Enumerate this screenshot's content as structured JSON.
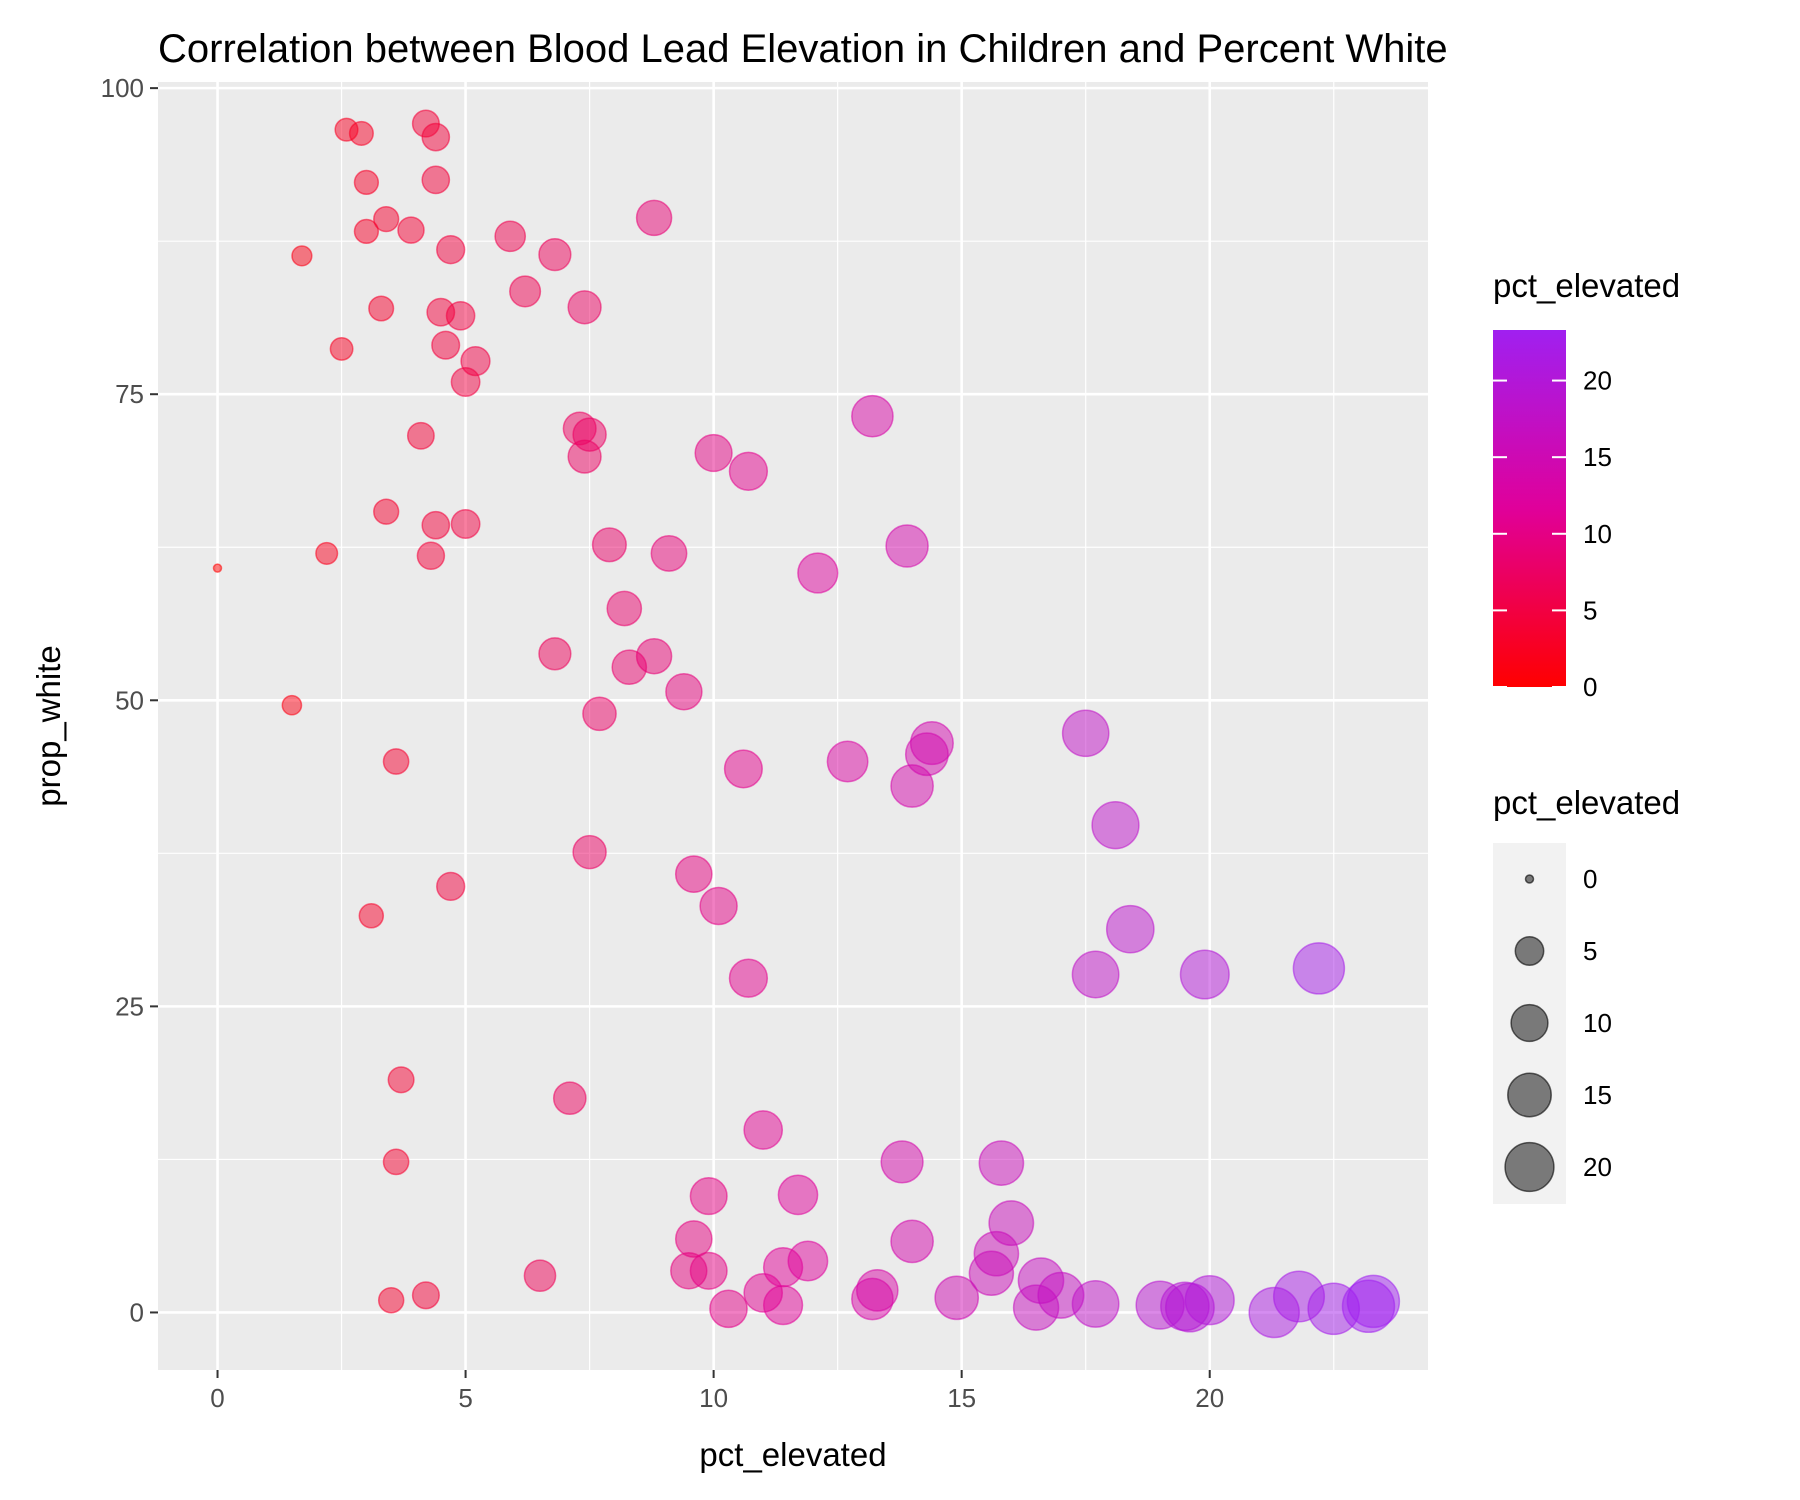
{
  "chart_data": {
    "type": "scatter",
    "title": "Correlation between Blood Lead Elevation in Children and Percent White",
    "xlabel": "pct_elevated",
    "ylabel": "prop_white",
    "xlim": [
      -1.2,
      24.4
    ],
    "ylim": [
      -4.7,
      100.5
    ],
    "x_ticks": [
      0,
      5,
      10,
      15,
      20
    ],
    "y_ticks": [
      0,
      25,
      50,
      75,
      100
    ],
    "x_tick_labels": [
      "0",
      "5",
      "10",
      "15",
      "20"
    ],
    "y_tick_labels": [
      "0",
      "25",
      "50",
      "75",
      "100"
    ],
    "grid": true,
    "panel_background": "#ebebeb",
    "legend_position": "right",
    "color_scale": {
      "title": "pct_elevated",
      "low": "#ff0000",
      "mid": "#e0009a",
      "high": "#a020f0",
      "domain": [
        0,
        23.3
      ],
      "breaks": [
        0,
        5,
        10,
        15,
        20
      ],
      "labels": [
        "0",
        "5",
        "10",
        "15",
        "20"
      ]
    },
    "size_scale": {
      "title": "pct_elevated",
      "breaks": [
        0,
        5,
        10,
        15,
        20
      ],
      "labels": [
        "0",
        "5",
        "10",
        "15",
        "20"
      ]
    },
    "point_alpha": 0.5,
    "points": [
      [
        0.0,
        60.8
      ],
      [
        1.5,
        49.6
      ],
      [
        1.7,
        86.3
      ],
      [
        2.2,
        62.0
      ],
      [
        2.5,
        78.7
      ],
      [
        2.6,
        96.6
      ],
      [
        2.9,
        96.3
      ],
      [
        3.0,
        92.3
      ],
      [
        3.0,
        88.3
      ],
      [
        3.1,
        32.4
      ],
      [
        3.3,
        82.0
      ],
      [
        3.4,
        89.3
      ],
      [
        3.4,
        65.4
      ],
      [
        3.5,
        1.0
      ],
      [
        3.6,
        45.0
      ],
      [
        3.6,
        12.3
      ],
      [
        3.7,
        19.0
      ],
      [
        3.9,
        88.4
      ],
      [
        4.1,
        71.6
      ],
      [
        4.2,
        97.1
      ],
      [
        4.3,
        61.8
      ],
      [
        4.2,
        1.4
      ],
      [
        4.4,
        64.3
      ],
      [
        4.4,
        92.5
      ],
      [
        4.4,
        96.0
      ],
      [
        4.5,
        81.7
      ],
      [
        4.6,
        79.0
      ],
      [
        4.7,
        34.8
      ],
      [
        4.7,
        86.8
      ],
      [
        4.9,
        81.4
      ],
      [
        5.0,
        76.0
      ],
      [
        5.0,
        64.4
      ],
      [
        5.2,
        77.7
      ],
      [
        5.9,
        87.9
      ],
      [
        6.2,
        83.4
      ],
      [
        6.5,
        3.0
      ],
      [
        6.8,
        86.4
      ],
      [
        6.8,
        53.8
      ],
      [
        7.1,
        17.5
      ],
      [
        7.3,
        72.2
      ],
      [
        7.4,
        69.9
      ],
      [
        7.4,
        82.1
      ],
      [
        7.5,
        71.7
      ],
      [
        7.5,
        37.6
      ],
      [
        7.7,
        48.9
      ],
      [
        7.9,
        62.7
      ],
      [
        8.2,
        57.5
      ],
      [
        8.3,
        52.7
      ],
      [
        8.8,
        53.6
      ],
      [
        8.8,
        89.4
      ],
      [
        9.1,
        62.0
      ],
      [
        9.4,
        50.7
      ],
      [
        9.5,
        3.4
      ],
      [
        9.6,
        35.8
      ],
      [
        9.6,
        6.0
      ],
      [
        9.9,
        9.5
      ],
      [
        9.9,
        3.4
      ],
      [
        10.0,
        70.2
      ],
      [
        10.1,
        33.2
      ],
      [
        10.3,
        0.3
      ],
      [
        10.6,
        44.4
      ],
      [
        10.7,
        27.3
      ],
      [
        10.7,
        68.7
      ],
      [
        11.0,
        1.6
      ],
      [
        11.0,
        14.9
      ],
      [
        11.4,
        0.6
      ],
      [
        11.4,
        3.7
      ],
      [
        11.7,
        9.6
      ],
      [
        11.9,
        4.2
      ],
      [
        12.1,
        60.4
      ],
      [
        12.7,
        45.0
      ],
      [
        13.2,
        1.1
      ],
      [
        13.2,
        73.2
      ],
      [
        13.3,
        1.8
      ],
      [
        13.8,
        12.3
      ],
      [
        13.9,
        62.6
      ],
      [
        14.0,
        43.0
      ],
      [
        14.0,
        5.8
      ],
      [
        14.3,
        45.6
      ],
      [
        14.4,
        46.5
      ],
      [
        14.9,
        1.2
      ],
      [
        15.6,
        3.2
      ],
      [
        15.7,
        4.8
      ],
      [
        15.8,
        12.2
      ],
      [
        16.0,
        7.3
      ],
      [
        16.5,
        0.4
      ],
      [
        16.6,
        2.6
      ],
      [
        17.0,
        1.4
      ],
      [
        17.5,
        47.3
      ],
      [
        17.7,
        27.6
      ],
      [
        17.7,
        0.7
      ],
      [
        18.1,
        39.8
      ],
      [
        18.4,
        31.3
      ],
      [
        19.0,
        0.6
      ],
      [
        19.5,
        0.5
      ],
      [
        19.6,
        0.4
      ],
      [
        19.9,
        27.6
      ],
      [
        20.0,
        1.0
      ],
      [
        21.3,
        0.0
      ],
      [
        21.8,
        1.3
      ],
      [
        22.2,
        28.1
      ],
      [
        22.5,
        0.3
      ],
      [
        23.2,
        0.5
      ],
      [
        23.3,
        0.9
      ]
    ]
  }
}
